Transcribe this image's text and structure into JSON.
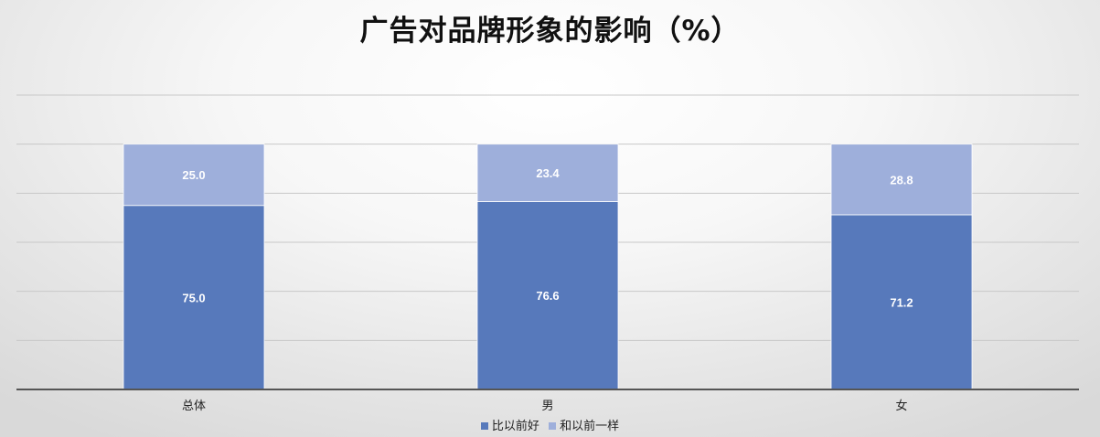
{
  "chart_data": {
    "type": "bar",
    "stacked": true,
    "title": "广告对品牌形象的影响（%）",
    "categories": [
      "总体",
      "男",
      "女"
    ],
    "series": [
      {
        "name": "比以前好",
        "values": [
          75.0,
          76.6,
          71.2
        ],
        "color": "#5779bb"
      },
      {
        "name": "和以前一样",
        "values": [
          25.0,
          23.4,
          28.8
        ],
        "color": "#9eafdb"
      }
    ],
    "value_labels": [
      [
        "75.0",
        "76.6",
        "71.2"
      ],
      [
        "25.0",
        "23.4",
        "28.8"
      ]
    ],
    "ylim": [
      0,
      120
    ],
    "grid": true,
    "legend_position": "bottom",
    "label_color": "#ffffff"
  }
}
